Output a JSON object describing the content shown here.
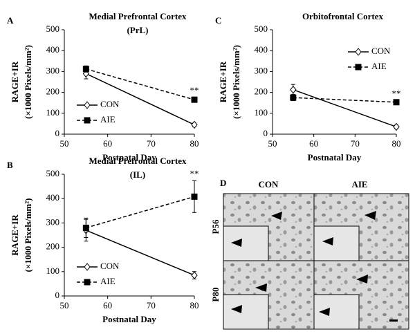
{
  "chart_data": [
    {
      "type": "line",
      "panel_label": "A",
      "title": "Medial Prefrontal Cortex",
      "subtitle": "(PrL)",
      "ylabel": [
        "RAGE+IR",
        "(×1000 Pixels/mm²)"
      ],
      "xlabel": "Postnatal Day",
      "x": [
        55,
        80
      ],
      "xlim": [
        50,
        80
      ],
      "xticks": [
        50,
        60,
        70,
        80
      ],
      "ylim": [
        0,
        500
      ],
      "yticks": [
        0,
        100,
        200,
        300,
        400,
        500
      ],
      "legend": "lower left",
      "annotation": "**",
      "series": [
        {
          "name": "CON",
          "color": "#000000",
          "marker": "diamond",
          "line_style": "solid",
          "values": [
            290,
            45
          ],
          "errors": [
            25,
            8
          ]
        },
        {
          "name": "AIE",
          "color": "#000000",
          "marker": "square",
          "line_style": "dashed",
          "values": [
            312,
            165
          ],
          "errors": [
            15,
            10
          ]
        }
      ]
    },
    {
      "type": "line",
      "panel_label": "C",
      "title": "Orbitofrontal Cortex",
      "ylabel": [
        "RAGE+IR",
        "(×1000 Pixels/mm²)"
      ],
      "xlabel": "Postnatal Day",
      "x": [
        55,
        80
      ],
      "xlim": [
        50,
        80
      ],
      "xticks": [
        50,
        60,
        70,
        80
      ],
      "ylim": [
        0,
        500
      ],
      "yticks": [
        0,
        100,
        200,
        300,
        400,
        500
      ],
      "legend": "upper right",
      "annotation": "**",
      "series": [
        {
          "name": "CON",
          "color": "#000000",
          "marker": "diamond",
          "line_style": "solid",
          "values": [
            213,
            35
          ],
          "errors": [
            25,
            8
          ]
        },
        {
          "name": "AIE",
          "color": "#000000",
          "marker": "square",
          "line_style": "dashed",
          "values": [
            175,
            153
          ],
          "errors": [
            15,
            8
          ]
        }
      ]
    },
    {
      "type": "line",
      "panel_label": "B",
      "title": "Medial Prefrontal Cortex",
      "subtitle": "(IL)",
      "ylabel": [
        "RAGE+IR",
        "(×1000 Pixels/mm²)"
      ],
      "xlabel": "Postnatal Day",
      "x": [
        55,
        80
      ],
      "xlim": [
        50,
        80
      ],
      "xticks": [
        50,
        60,
        70,
        80
      ],
      "ylim": [
        0,
        500
      ],
      "yticks": [
        0,
        100,
        200,
        300,
        400,
        500
      ],
      "legend": "lower left",
      "annotation": "**",
      "series": [
        {
          "name": "CON",
          "color": "#000000",
          "marker": "diamond",
          "line_style": "solid",
          "values": [
            270,
            85
          ],
          "errors": [
            45,
            15
          ]
        },
        {
          "name": "AIE",
          "color": "#000000",
          "marker": "square",
          "line_style": "dashed",
          "values": [
            280,
            408
          ],
          "errors": [
            40,
            65
          ]
        }
      ]
    }
  ],
  "panel_d": {
    "label": "D",
    "columns": [
      "CON",
      "AIE"
    ],
    "rows": [
      "P56",
      "P80"
    ]
  }
}
